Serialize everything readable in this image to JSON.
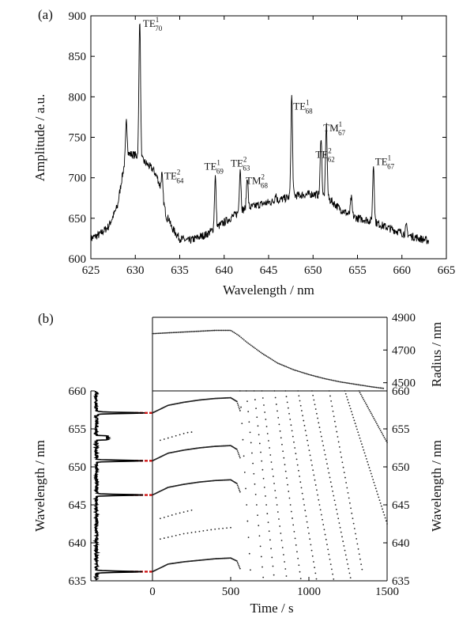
{
  "panel_a": {
    "label": "(a)",
    "xlabel": "Wavelength / nm",
    "ylabel": "Amplitude / a.u.",
    "peaks": [
      {
        "mode": "TE",
        "sup": "1",
        "sub": "70",
        "x": 630.5,
        "y": 898
      },
      {
        "mode": "TE",
        "sup": "2",
        "sub": "64",
        "x": 633.0,
        "y": 704
      },
      {
        "mode": "TE",
        "sup": "1",
        "sub": "69",
        "x": 639.0,
        "y": 702
      },
      {
        "mode": "TE",
        "sup": "2",
        "sub": "63",
        "x": 641.8,
        "y": 712
      },
      {
        "mode": "TM",
        "sup": "2",
        "sub": "68",
        "x": 642.6,
        "y": 702
      },
      {
        "mode": "TE",
        "sup": "1",
        "sub": "68",
        "x": 647.6,
        "y": 802
      },
      {
        "mode": "TE",
        "sup": "2",
        "sub": "62",
        "x": 650.9,
        "y": 752
      },
      {
        "mode": "TM",
        "sup": "1",
        "sub": "67",
        "x": 651.5,
        "y": 766
      },
      {
        "mode": "TE",
        "sup": "1",
        "sub": "67",
        "x": 656.8,
        "y": 716
      }
    ]
  },
  "panel_b": {
    "label": "(b)",
    "xlabel": "Time / s",
    "ylabel_left": "Wavelength / nm",
    "ylabel_right": "Wavelength / nm",
    "ylabel_radius": "Radius / nm"
  },
  "chart_data": [
    {
      "type": "line",
      "panel": "(a)",
      "xlabel": "Wavelength / nm",
      "ylabel": "Amplitude / a.u.",
      "xlim": [
        625,
        665
      ],
      "ylim": [
        600,
        900
      ],
      "xticks": [
        625,
        630,
        635,
        640,
        645,
        650,
        655,
        660,
        665
      ],
      "yticks": [
        600,
        650,
        700,
        750,
        800,
        850,
        900
      ],
      "baseline": {
        "x": [
          625,
          626,
          627,
          628,
          628.5,
          629,
          630,
          631,
          632,
          632.5,
          633,
          633.5,
          634,
          635,
          636,
          638,
          640,
          642,
          644,
          646,
          648,
          650,
          651,
          652,
          653,
          654,
          655,
          656,
          657,
          658,
          659,
          660,
          661,
          662,
          663
        ],
        "y": [
          625,
          630,
          640,
          665,
          700,
          730,
          728,
          720,
          710,
          700,
          680,
          652,
          640,
          625,
          622,
          630,
          645,
          660,
          667,
          672,
          678,
          680,
          678,
          672,
          662,
          655,
          650,
          648,
          645,
          640,
          636,
          632,
          628,
          625,
          622
        ]
      },
      "peaks": [
        {
          "x": 629.0,
          "y": 770
        },
        {
          "x": 630.5,
          "y": 898
        },
        {
          "x": 633.0,
          "y": 704
        },
        {
          "x": 633.8,
          "y": 650
        },
        {
          "x": 639.0,
          "y": 702
        },
        {
          "x": 641.8,
          "y": 712
        },
        {
          "x": 642.6,
          "y": 702
        },
        {
          "x": 645.8,
          "y": 680
        },
        {
          "x": 647.6,
          "y": 802
        },
        {
          "x": 650.9,
          "y": 752
        },
        {
          "x": 651.5,
          "y": 766
        },
        {
          "x": 654.3,
          "y": 675
        },
        {
          "x": 656.8,
          "y": 716
        },
        {
          "x": 660.5,
          "y": 640
        }
      ]
    },
    {
      "type": "line",
      "panel": "(b) spectrum",
      "orientation": "horizontal",
      "ylabel": "Wavelength / nm",
      "ylim": [
        635,
        660
      ],
      "yticks": [
        635,
        640,
        645,
        650,
        655,
        660
      ],
      "peaks": [
        636.2,
        646.3,
        650.8,
        657.1
      ],
      "reference_lines": [
        636.2,
        646.3,
        650.8,
        657.1
      ]
    },
    {
      "type": "scatter",
      "panel": "(b) radius",
      "ylabel": "Radius / nm",
      "xlim": [
        0,
        1500
      ],
      "ylim": [
        4450,
        4900
      ],
      "yticks": [
        4500,
        4700,
        4900
      ],
      "x": [
        0,
        100,
        200,
        300,
        400,
        500,
        550,
        600,
        700,
        800,
        900,
        1000,
        1100,
        1200,
        1300,
        1400,
        1480
      ],
      "y": [
        4800,
        4805,
        4810,
        4815,
        4820,
        4820,
        4790,
        4750,
        4680,
        4620,
        4580,
        4550,
        4525,
        4505,
        4490,
        4475,
        4465
      ]
    },
    {
      "type": "scatter",
      "panel": "(b) wavelength vs time",
      "xlabel": "Time / s",
      "ylabel": "Wavelength / nm",
      "xlim": [
        0,
        1500
      ],
      "ylim": [
        635,
        660
      ],
      "xticks": [
        0,
        500,
        1000,
        1500
      ],
      "yticks": [
        635,
        640,
        645,
        650,
        655,
        660
      ],
      "stable_tracks": [
        {
          "x": [
            0,
            100,
            200,
            300,
            400,
            500,
            540,
            560
          ],
          "y": [
            657.1,
            658.1,
            658.5,
            658.8,
            659.0,
            659.1,
            658.6,
            657.4
          ]
        },
        {
          "x": [
            0,
            100,
            200,
            300,
            400,
            500,
            540,
            560
          ],
          "y": [
            650.8,
            651.8,
            652.2,
            652.5,
            652.7,
            652.8,
            652.3,
            651.2
          ]
        },
        {
          "x": [
            0,
            100,
            200,
            300,
            400,
            500,
            540,
            560
          ],
          "y": [
            646.3,
            647.3,
            647.7,
            648.0,
            648.2,
            648.3,
            647.8,
            646.7
          ]
        },
        {
          "x": [
            0,
            100,
            200,
            300,
            400,
            500,
            540,
            560
          ],
          "y": [
            636.2,
            637.2,
            637.5,
            637.7,
            637.9,
            638.0,
            637.6,
            636.6
          ]
        }
      ],
      "sparse_tracks": [
        {
          "x": [
            50,
            150,
            250
          ],
          "y": [
            643.2,
            643.8,
            644.3
          ]
        },
        {
          "x": [
            50,
            200,
            400,
            500
          ],
          "y": [
            640.5,
            641.2,
            641.8,
            642.0
          ]
        },
        {
          "x": [
            50,
            220,
            260
          ],
          "y": [
            653.5,
            654.5,
            654.6
          ]
        }
      ],
      "falling_tracks": [
        {
          "x": [
            560,
            630
          ],
          "y": [
            660,
            635
          ]
        },
        {
          "x": [
            600,
            710
          ],
          "y": [
            660,
            635
          ]
        },
        {
          "x": [
            650,
            780
          ],
          "y": [
            660,
            635
          ]
        },
        {
          "x": [
            700,
            860
          ],
          "y": [
            660,
            635
          ]
        },
        {
          "x": [
            780,
            950
          ],
          "y": [
            660,
            635
          ]
        },
        {
          "x": [
            850,
            1050
          ],
          "y": [
            660,
            635
          ]
        },
        {
          "x": [
            930,
            1160
          ],
          "y": [
            660,
            635
          ]
        },
        {
          "x": [
            1020,
            1270
          ],
          "y": [
            660,
            635
          ]
        },
        {
          "x": [
            1130,
            1340
          ],
          "y": [
            660,
            636.5
          ]
        },
        {
          "x": [
            1230,
            1500
          ],
          "y": [
            660,
            642.5
          ]
        },
        {
          "x": [
            1320,
            1500
          ],
          "y": [
            660,
            653.2
          ]
        }
      ]
    }
  ]
}
